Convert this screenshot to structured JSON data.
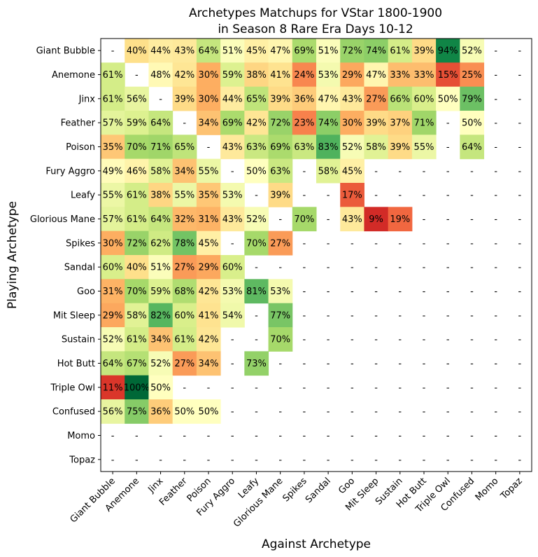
{
  "chart_data": {
    "type": "heatmap",
    "title_line1": "Archetypes Matchups for VStar 1800-1900",
    "title_line2": "in Season 8 Rare Era Days 10-12",
    "xlabel": "Against Archetype",
    "ylabel": "Playing Archetype",
    "categories": [
      "Giant Bubble",
      "Anemone",
      "Jinx",
      "Feather",
      "Poison",
      "Fury Aggro",
      "Leafy",
      "Glorious Mane",
      "Spikes",
      "Sandal",
      "Goo",
      "Mit Sleep",
      "Sustain",
      "Hot Butt",
      "Triple Owl",
      "Confused",
      "Momo",
      "Topaz"
    ],
    "colormap": "RdYlGn",
    "missing_label": "-",
    "values": [
      [
        null,
        40,
        44,
        43,
        64,
        51,
        45,
        47,
        69,
        51,
        72,
        74,
        61,
        39,
        94,
        52,
        null,
        null
      ],
      [
        61,
        null,
        48,
        42,
        30,
        59,
        38,
        41,
        24,
        53,
        29,
        47,
        33,
        33,
        15,
        25,
        null,
        null
      ],
      [
        61,
        56,
        null,
        39,
        30,
        44,
        65,
        39,
        36,
        47,
        43,
        27,
        66,
        60,
        50,
        79,
        null,
        null
      ],
      [
        57,
        59,
        64,
        null,
        34,
        69,
        42,
        72,
        23,
        74,
        30,
        39,
        37,
        71,
        null,
        50,
        null,
        null
      ],
      [
        35,
        70,
        71,
        65,
        null,
        43,
        63,
        69,
        63,
        83,
        52,
        58,
        39,
        55,
        null,
        64,
        null,
        null
      ],
      [
        49,
        46,
        58,
        34,
        55,
        null,
        50,
        63,
        null,
        58,
        45,
        null,
        null,
        null,
        null,
        null,
        null,
        null
      ],
      [
        55,
        61,
        38,
        55,
        35,
        53,
        null,
        39,
        null,
        null,
        17,
        null,
        null,
        null,
        null,
        null,
        null,
        null
      ],
      [
        57,
        61,
        64,
        32,
        31,
        43,
        52,
        null,
        70,
        null,
        43,
        9,
        19,
        null,
        null,
        null,
        null,
        null
      ],
      [
        30,
        72,
        62,
        78,
        45,
        null,
        70,
        27,
        null,
        null,
        null,
        null,
        null,
        null,
        null,
        null,
        null,
        null
      ],
      [
        60,
        40,
        51,
        27,
        29,
        60,
        null,
        null,
        null,
        null,
        null,
        null,
        null,
        null,
        null,
        null,
        null,
        null
      ],
      [
        31,
        70,
        59,
        68,
        42,
        53,
        81,
        53,
        null,
        null,
        null,
        null,
        null,
        null,
        null,
        null,
        null,
        null
      ],
      [
        29,
        58,
        82,
        60,
        41,
        54,
        null,
        77,
        null,
        null,
        null,
        null,
        null,
        null,
        null,
        null,
        null,
        null
      ],
      [
        52,
        61,
        34,
        61,
        42,
        null,
        null,
        70,
        null,
        null,
        null,
        null,
        null,
        null,
        null,
        null,
        null,
        null
      ],
      [
        64,
        67,
        52,
        27,
        34,
        null,
        73,
        null,
        null,
        null,
        null,
        null,
        null,
        null,
        null,
        null,
        null,
        null
      ],
      [
        11,
        100,
        50,
        null,
        null,
        null,
        null,
        null,
        null,
        null,
        null,
        null,
        null,
        null,
        null,
        null,
        null,
        null
      ],
      [
        56,
        75,
        36,
        50,
        50,
        null,
        null,
        null,
        null,
        null,
        null,
        null,
        null,
        null,
        null,
        null,
        null,
        null
      ],
      [
        null,
        null,
        null,
        null,
        null,
        null,
        null,
        null,
        null,
        null,
        null,
        null,
        null,
        null,
        null,
        null,
        null,
        null
      ],
      [
        null,
        null,
        null,
        null,
        null,
        null,
        null,
        null,
        null,
        null,
        null,
        null,
        null,
        null,
        null,
        null,
        null,
        null
      ]
    ]
  }
}
